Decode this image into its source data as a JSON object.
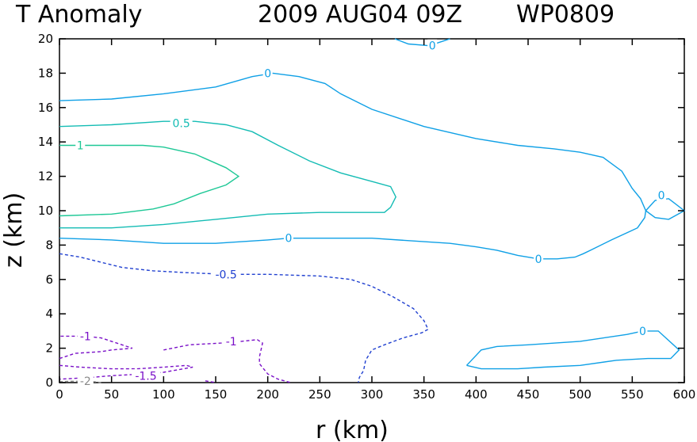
{
  "chart_data": {
    "type": "contour",
    "title_parts": [
      "T Anomaly",
      "2009 AUG04 09Z",
      "WP0809"
    ],
    "xlabel": "r (km)",
    "ylabel": "z (km)",
    "xlim": [
      0,
      600
    ],
    "ylim": [
      0,
      20
    ],
    "xticks": [
      0,
      50,
      100,
      150,
      200,
      250,
      300,
      350,
      400,
      450,
      500,
      550,
      600
    ],
    "yticks": [
      0,
      2,
      4,
      6,
      8,
      10,
      12,
      14,
      16,
      18,
      20
    ],
    "contours": [
      {
        "level": "0",
        "color": "#0fa0e6",
        "dashed": false,
        "points": [
          [
            0,
            16.4
          ],
          [
            50,
            16.5
          ],
          [
            100,
            16.8
          ],
          [
            150,
            17.2
          ],
          [
            185,
            17.8
          ],
          [
            205,
            18.0
          ],
          [
            230,
            17.8
          ],
          [
            255,
            17.4
          ],
          [
            270,
            16.8
          ],
          [
            300,
            15.9
          ],
          [
            350,
            14.9
          ],
          [
            400,
            14.2
          ],
          [
            440,
            13.8
          ],
          [
            475,
            13.6
          ],
          [
            500,
            13.4
          ],
          [
            522,
            13.1
          ],
          [
            540,
            12.3
          ],
          [
            550,
            11.3
          ],
          [
            558,
            10.7
          ],
          [
            563,
            10.0
          ],
          [
            562,
            9.6
          ],
          [
            555,
            9.0
          ],
          [
            548,
            8.8
          ],
          [
            530,
            8.3
          ],
          [
            510,
            7.7
          ],
          [
            503,
            7.5
          ],
          [
            495,
            7.3
          ],
          [
            478,
            7.2
          ],
          [
            460,
            7.2
          ],
          [
            440,
            7.4
          ],
          [
            420,
            7.7
          ],
          [
            400,
            7.9
          ],
          [
            375,
            8.1
          ],
          [
            350,
            8.2
          ],
          [
            300,
            8.4
          ],
          [
            250,
            8.4
          ],
          [
            220,
            8.4
          ],
          [
            200,
            8.3
          ],
          [
            175,
            8.2
          ],
          [
            150,
            8.1
          ],
          [
            100,
            8.1
          ],
          [
            50,
            8.3
          ],
          [
            0,
            8.4
          ]
        ],
        "labels": [
          {
            "text": "0",
            "at": [
              200,
              18.0
            ]
          },
          {
            "text": "0",
            "at": [
              220,
              8.4
            ]
          },
          {
            "text": "0",
            "at": [
              460,
              7.2
            ]
          }
        ]
      },
      {
        "level": "0",
        "color": "#0fa0e6",
        "dashed": false,
        "points": [
          [
            563,
            10.0
          ],
          [
            572,
            10.6
          ],
          [
            585,
            10.7
          ],
          [
            600,
            10.0
          ],
          [
            585,
            9.5
          ],
          [
            572,
            9.6
          ],
          [
            563,
            10.0
          ]
        ],
        "labels": [
          {
            "text": "0",
            "at": [
              578,
              10.9
            ]
          }
        ]
      },
      {
        "level": "0",
        "color": "#0fa0e6",
        "dashed": false,
        "points": [
          [
            322,
            20.0
          ],
          [
            335,
            19.7
          ],
          [
            355,
            19.6
          ],
          [
            370,
            19.9
          ],
          [
            375,
            20.0
          ]
        ],
        "labels": [
          {
            "text": "0",
            "at": [
              358,
              19.6
            ]
          }
        ]
      },
      {
        "level": "0",
        "color": "#0fa0e6",
        "dashed": false,
        "points": [
          [
            391,
            1.0
          ],
          [
            405,
            1.9
          ],
          [
            420,
            2.1
          ],
          [
            450,
            2.2
          ],
          [
            500,
            2.4
          ],
          [
            545,
            2.8
          ],
          [
            560,
            3.0
          ],
          [
            575,
            3.0
          ],
          [
            595,
            1.9
          ],
          [
            587,
            1.4
          ],
          [
            565,
            1.4
          ],
          [
            535,
            1.3
          ],
          [
            500,
            1.0
          ],
          [
            465,
            0.9
          ],
          [
            440,
            0.8
          ],
          [
            405,
            0.8
          ],
          [
            391,
            1.0
          ]
        ],
        "labels": [
          {
            "text": "0",
            "at": [
              560,
              3.0
            ]
          }
        ]
      },
      {
        "level": "0.5",
        "color": "#14bcb4",
        "dashed": false,
        "points": [
          [
            0,
            14.9
          ],
          [
            50,
            15.0
          ],
          [
            100,
            15.2
          ],
          [
            130,
            15.2
          ],
          [
            160,
            15.0
          ],
          [
            185,
            14.6
          ],
          [
            210,
            13.8
          ],
          [
            240,
            12.9
          ],
          [
            270,
            12.2
          ],
          [
            300,
            11.7
          ],
          [
            318,
            11.4
          ],
          [
            323,
            10.8
          ],
          [
            318,
            10.2
          ],
          [
            312,
            9.9
          ],
          [
            300,
            9.9
          ],
          [
            250,
            9.9
          ],
          [
            200,
            9.8
          ],
          [
            150,
            9.5
          ],
          [
            100,
            9.2
          ],
          [
            50,
            9.0
          ],
          [
            0,
            9.0
          ]
        ],
        "labels": [
          {
            "text": "0.5",
            "at": [
              117,
              15.1
            ]
          }
        ]
      },
      {
        "level": "1",
        "color": "#1ec896",
        "dashed": false,
        "points": [
          [
            0,
            13.8
          ],
          [
            30,
            13.8
          ],
          [
            80,
            13.8
          ],
          [
            100,
            13.7
          ],
          [
            130,
            13.3
          ],
          [
            160,
            12.5
          ],
          [
            172,
            12.0
          ],
          [
            160,
            11.5
          ],
          [
            135,
            11.0
          ],
          [
            110,
            10.4
          ],
          [
            90,
            10.1
          ],
          [
            50,
            9.8
          ],
          [
            0,
            9.7
          ]
        ],
        "labels": [
          {
            "text": "1",
            "at": [
              20,
              13.8
            ]
          }
        ]
      },
      {
        "level": "-0.5",
        "color": "#2040d0",
        "dashed": true,
        "points": [
          [
            0,
            7.5
          ],
          [
            20,
            7.3
          ],
          [
            40,
            7.0
          ],
          [
            60,
            6.7
          ],
          [
            90,
            6.5
          ],
          [
            120,
            6.4
          ],
          [
            160,
            6.3
          ],
          [
            200,
            6.3
          ],
          [
            250,
            6.2
          ],
          [
            280,
            6.0
          ],
          [
            300,
            5.6
          ],
          [
            320,
            5.0
          ],
          [
            340,
            4.3
          ],
          [
            350,
            3.6
          ],
          [
            354,
            3.1
          ],
          [
            348,
            2.9
          ],
          [
            330,
            2.6
          ],
          [
            312,
            2.2
          ],
          [
            300,
            1.9
          ],
          [
            294,
            1.3
          ],
          [
            292,
            0.7
          ],
          [
            288,
            0.3
          ],
          [
            287,
            0.0
          ]
        ],
        "labels": [
          {
            "text": "-0.5",
            "at": [
              160,
              6.3
            ]
          }
        ]
      },
      {
        "level": "-1",
        "color": "#7a10c8",
        "dashed": true,
        "points": [
          [
            0,
            1.4
          ],
          [
            15,
            1.7
          ],
          [
            40,
            1.8
          ],
          [
            50,
            1.9
          ],
          [
            70,
            2.0
          ],
          [
            55,
            2.3
          ],
          [
            40,
            2.6
          ],
          [
            25,
            2.7
          ],
          [
            0,
            2.7
          ]
        ],
        "labels": [
          {
            "text": "-1",
            "at": [
              25,
              2.7
            ]
          }
        ]
      },
      {
        "level": "-1",
        "color": "#7a10c8",
        "dashed": true,
        "points": [
          [
            100,
            1.9
          ],
          [
            125,
            2.2
          ],
          [
            155,
            2.3
          ],
          [
            175,
            2.4
          ],
          [
            190,
            2.5
          ],
          [
            195,
            2.3
          ],
          [
            192,
            1.5
          ],
          [
            192,
            1.1
          ],
          [
            200,
            0.5
          ],
          [
            210,
            0.2
          ],
          [
            222,
            0.0
          ]
        ],
        "labels": [
          {
            "text": "-1",
            "at": [
              165,
              2.4
            ]
          }
        ]
      },
      {
        "level": "-1.5",
        "color": "#7a10c8",
        "dashed": true,
        "points": [
          [
            0,
            1.0
          ],
          [
            20,
            0.9
          ],
          [
            50,
            0.8
          ],
          [
            75,
            0.8
          ],
          [
            100,
            0.9
          ],
          [
            122,
            1.0
          ],
          [
            128,
            0.9
          ],
          [
            100,
            0.6
          ],
          [
            80,
            0.5
          ],
          [
            50,
            0.4
          ],
          [
            30,
            0.3
          ],
          [
            0,
            0.2
          ]
        ],
        "labels": [
          {
            "text": "-1.5",
            "at": [
              83,
              0.4
            ]
          }
        ]
      },
      {
        "level": "-1.5",
        "color": "#7a10c8",
        "dashed": true,
        "points": [
          [
            140,
            0.1
          ],
          [
            150,
            0.0
          ]
        ],
        "labels": []
      },
      {
        "level": "-2",
        "color": "#8a8a8a",
        "dashed": true,
        "points": [
          [
            0,
            0.05
          ],
          [
            10,
            0.08
          ],
          [
            30,
            0.08
          ],
          [
            40,
            0.0
          ]
        ],
        "labels": [
          {
            "text": "-2",
            "at": [
              25,
              0.1
            ]
          }
        ]
      }
    ]
  }
}
